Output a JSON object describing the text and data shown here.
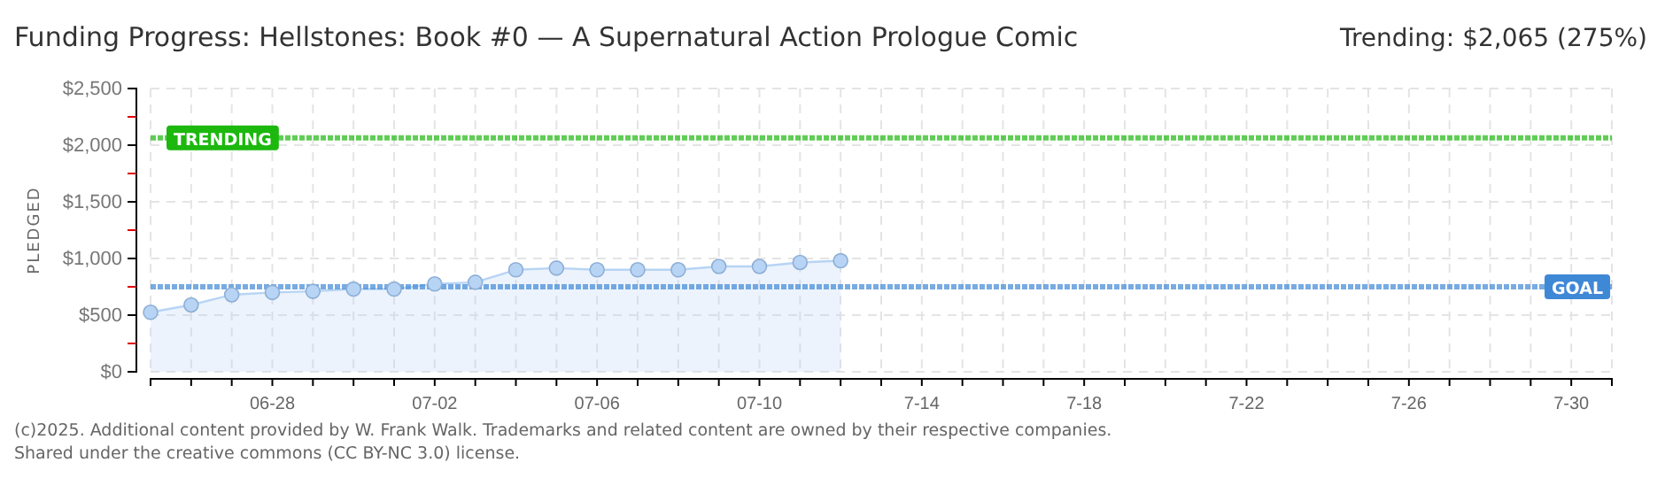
{
  "chart_data": {
    "type": "area",
    "title": "Funding Progress: Hellstones: Book #0 — A Supernatural Action Prologue Comic",
    "ylabel": "PLEDGED",
    "x": [
      "2025-06-25",
      "2025-06-26",
      "2025-06-27",
      "2025-06-28",
      "2025-06-29",
      "2025-06-30",
      "2025-07-01",
      "2025-07-02",
      "2025-07-03",
      "2025-07-04",
      "2025-07-05",
      "2025-07-06",
      "2025-07-07",
      "2025-07-08",
      "2025-07-09",
      "2025-07-10",
      "2025-07-11",
      "2025-07-12"
    ],
    "series": [
      {
        "color": "#b7d4f4",
        "values": [
          525,
          590,
          680,
          700,
          710,
          730,
          730,
          775,
          790,
          900,
          915,
          900,
          900,
          900,
          930,
          930,
          965,
          980
        ]
      }
    ],
    "xlim": [
      "2025-06-25",
      "2025-07-31"
    ],
    "xticks": [
      {
        "value": "2025-06-25",
        "label": null
      },
      {
        "value": "2025-06-26",
        "label": null
      },
      {
        "value": "2025-06-27",
        "label": null
      },
      {
        "value": "2025-06-28",
        "label": "06-28"
      },
      {
        "value": "2025-06-29",
        "label": null
      },
      {
        "value": "2025-06-30",
        "label": null
      },
      {
        "value": "2025-07-01",
        "label": null
      },
      {
        "value": "2025-07-02",
        "label": "07-02"
      },
      {
        "value": "2025-07-03",
        "label": null
      },
      {
        "value": "2025-07-04",
        "label": null
      },
      {
        "value": "2025-07-05",
        "label": null
      },
      {
        "value": "2025-07-06",
        "label": "07-06"
      },
      {
        "value": "2025-07-07",
        "label": null
      },
      {
        "value": "2025-07-08",
        "label": null
      },
      {
        "value": "2025-07-09",
        "label": null
      },
      {
        "value": "2025-07-10",
        "label": "07-10"
      },
      {
        "value": "2025-07-11",
        "label": null
      },
      {
        "value": "2025-07-12",
        "label": null
      },
      {
        "value": "2025-07-13",
        "label": null
      },
      {
        "value": "2025-07-14",
        "label": "7-14"
      },
      {
        "value": "2025-07-15",
        "label": null
      },
      {
        "value": "2025-07-16",
        "label": null
      },
      {
        "value": "2025-07-17",
        "label": null
      },
      {
        "value": "2025-07-18",
        "label": "7-18"
      },
      {
        "value": "2025-07-19",
        "label": null
      },
      {
        "value": "2025-07-20",
        "label": null
      },
      {
        "value": "2025-07-21",
        "label": null
      },
      {
        "value": "2025-07-22",
        "label": "7-22"
      },
      {
        "value": "2025-07-23",
        "label": null
      },
      {
        "value": "2025-07-24",
        "label": null
      },
      {
        "value": "2025-07-25",
        "label": null
      },
      {
        "value": "2025-07-26",
        "label": "7-26"
      },
      {
        "value": "2025-07-27",
        "label": null
      },
      {
        "value": "2025-07-28",
        "label": null
      },
      {
        "value": "2025-07-29",
        "label": null
      },
      {
        "value": "2025-07-30",
        "label": "7-30"
      },
      {
        "value": "2025-07-31",
        "label": null
      }
    ],
    "ylim": [
      0,
      2500
    ],
    "yticks": [
      {
        "value": 0,
        "label": "$0"
      },
      {
        "value": 250,
        "label": null
      },
      {
        "value": 500,
        "label": "$500"
      },
      {
        "value": 750,
        "label": null
      },
      {
        "value": 1000,
        "label": "$1,000"
      },
      {
        "value": 1250,
        "label": null
      },
      {
        "value": 1500,
        "label": "$1,500"
      },
      {
        "value": 1750,
        "label": null
      },
      {
        "value": 2000,
        "label": "$2,000"
      },
      {
        "value": 2250,
        "label": null
      },
      {
        "value": 2500,
        "label": "$2,500"
      }
    ],
    "grid": true,
    "marker": "circle",
    "ref_lines": [
      {
        "axis": "y",
        "value": 750,
        "label": "GOAL",
        "color": "#3f88d6"
      },
      {
        "axis": "y",
        "value": 2065,
        "label": "TRENDING",
        "color": "#1cb80e"
      }
    ],
    "annotations": [
      "Trending:  $2,065 (275%)",
      "(c)2025. Additional content provided by W. Frank Walk. Trademarks and related content are owned by their respective companies.",
      "Shared under the creative commons (CC BY-NC 3.0) license."
    ]
  }
}
